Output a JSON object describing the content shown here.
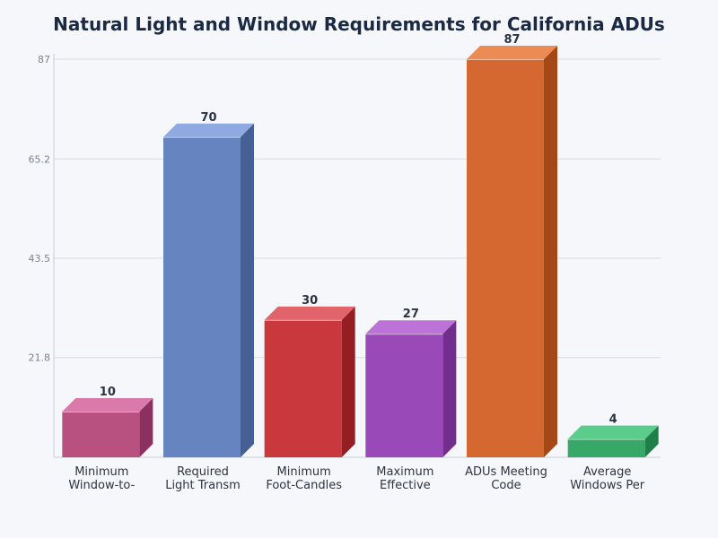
{
  "chart_data": {
    "type": "bar",
    "title": "Natural Light and Window Requirements for California ADUs",
    "xlabel": "",
    "ylabel": "",
    "categories": [
      [
        "Minimum",
        "Window-to-"
      ],
      [
        "Required",
        "Light Transm"
      ],
      [
        "Minimum",
        "Foot-Candles"
      ],
      [
        "Maximum",
        "Effective"
      ],
      [
        "ADUs Meeting",
        "Code"
      ],
      [
        "Average",
        "Windows Per"
      ]
    ],
    "values": [
      10,
      70,
      30,
      27,
      87,
      4
    ],
    "y_ticks": [
      "21.8",
      "43.5",
      "65.2",
      "87"
    ],
    "y_tick_values": [
      21.8,
      43.5,
      65.2,
      87
    ],
    "ylim": [
      0,
      87
    ],
    "grid": true,
    "legend": "none",
    "colors": [
      {
        "front": "#b85080",
        "top": "#d97aaa",
        "side": "#8c3060"
      },
      {
        "front": "#6684c0",
        "top": "#8eaae0",
        "side": "#465f94"
      },
      {
        "front": "#c8383c",
        "top": "#e0646a",
        "side": "#951e24"
      },
      {
        "front": "#9a4ab8",
        "top": "#bd72d8",
        "side": "#722e8e"
      },
      {
        "front": "#d46830",
        "top": "#ec8c54",
        "side": "#a44818"
      },
      {
        "front": "#38a868",
        "top": "#5ccc8c",
        "side": "#1e8048"
      }
    ]
  }
}
